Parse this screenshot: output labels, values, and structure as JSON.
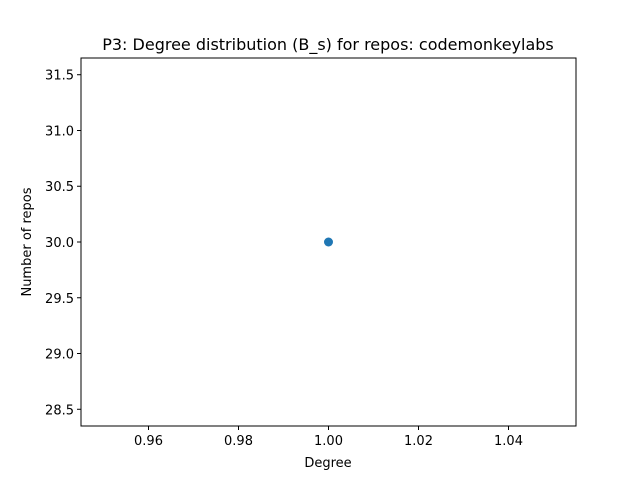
{
  "chart_data": {
    "type": "scatter",
    "title": "P3: Degree distribution (B_s) for repos: codemonkeylabs",
    "xlabel": "Degree",
    "ylabel": "Number of repos",
    "xlim": [
      0.945,
      1.055
    ],
    "ylim": [
      28.35,
      31.65
    ],
    "xticks": [
      0.96,
      0.98,
      1.0,
      1.02,
      1.04
    ],
    "xtick_labels": [
      "0.96",
      "0.98",
      "1.00",
      "1.02",
      "1.04"
    ],
    "yticks": [
      28.5,
      29.0,
      29.5,
      30.0,
      30.5,
      31.0,
      31.5
    ],
    "ytick_labels": [
      "28.5",
      "29.0",
      "29.5",
      "30.0",
      "30.5",
      "31.0",
      "31.5"
    ],
    "grid": false,
    "legend": false,
    "series": [
      {
        "color": "#1f77b4",
        "x": [
          1.0
        ],
        "y": [
          30.0
        ]
      }
    ]
  }
}
